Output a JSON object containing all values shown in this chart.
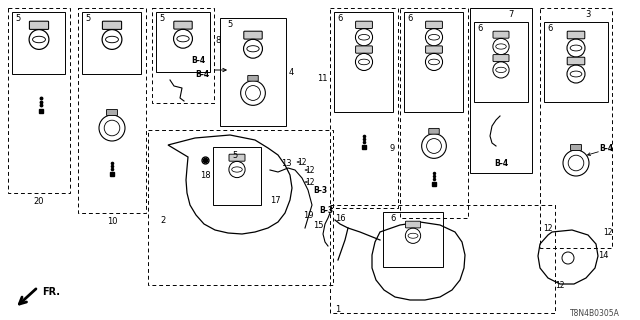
{
  "bg_color": "#ffffff",
  "part_code": "T8N4B0305A",
  "figsize": [
    6.4,
    3.2
  ],
  "dpi": 100
}
